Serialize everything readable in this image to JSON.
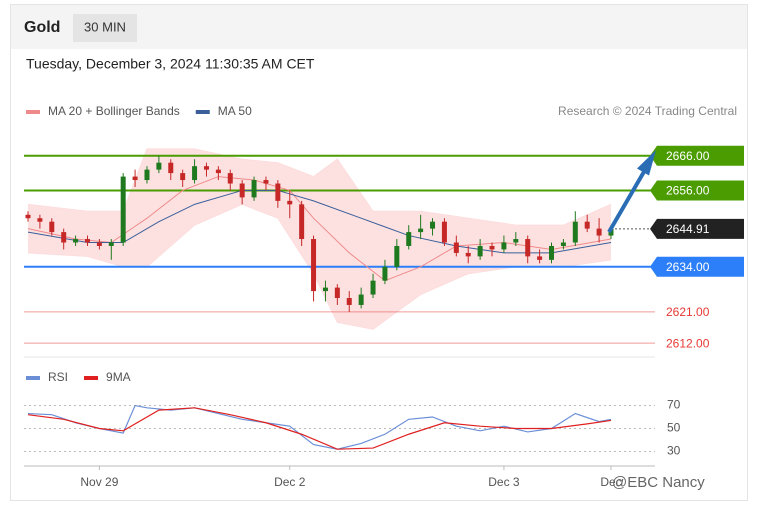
{
  "header": {
    "symbol": "Gold",
    "interval": "30 MIN",
    "timestamp": "Tuesday, December 3, 2024 11:30:35 AM CET",
    "source": "Research © 2024 Trading Central"
  },
  "watermark": "@EBC Nancy",
  "chart_data": [
    {
      "type": "candlestick",
      "up_color": "#1f7a1f",
      "down_color": "#c62828",
      "candles": [
        [
          2649,
          2650,
          2647,
          2648
        ],
        [
          2648,
          2649,
          2645,
          2647
        ],
        [
          2647,
          2648,
          2643,
          2644
        ],
        [
          2644,
          2645,
          2639,
          2641
        ],
        [
          2641,
          2643,
          2640,
          2642
        ],
        [
          2642,
          2643,
          2640,
          2641
        ],
        [
          2641,
          2642,
          2639,
          2640
        ],
        [
          2640,
          2642,
          2636,
          2641
        ],
        [
          2641,
          2661,
          2640,
          2660
        ],
        [
          2660,
          2662,
          2657,
          2659
        ],
        [
          2659,
          2663,
          2658,
          2662
        ],
        [
          2662,
          2666,
          2661,
          2664
        ],
        [
          2664,
          2665,
          2659,
          2661
        ],
        [
          2661,
          2662,
          2657,
          2659
        ],
        [
          2659,
          2665,
          2658,
          2663
        ],
        [
          2663,
          2664,
          2660,
          2662
        ],
        [
          2662,
          2663,
          2659,
          2661
        ],
        [
          2661,
          2662,
          2656,
          2658
        ],
        [
          2658,
          2659,
          2652,
          2654
        ],
        [
          2654,
          2660,
          2653,
          2659
        ],
        [
          2659,
          2660,
          2656,
          2658
        ],
        [
          2658,
          2659,
          2651,
          2653
        ],
        [
          2653,
          2656,
          2648,
          2652
        ],
        [
          2652,
          2653,
          2640,
          2642
        ],
        [
          2642,
          2643,
          2624,
          2627
        ],
        [
          2627,
          2630,
          2624,
          2628
        ],
        [
          2628,
          2629,
          2623,
          2625
        ],
        [
          2625,
          2627,
          2621,
          2623
        ],
        [
          2623,
          2628,
          2622,
          2626
        ],
        [
          2626,
          2632,
          2625,
          2630
        ],
        [
          2630,
          2636,
          2629,
          2634
        ],
        [
          2634,
          2642,
          2633,
          2640
        ],
        [
          2640,
          2646,
          2639,
          2644
        ],
        [
          2644,
          2649,
          2642,
          2645
        ],
        [
          2645,
          2648,
          2643,
          2647
        ],
        [
          2647,
          2648,
          2640,
          2641
        ],
        [
          2641,
          2643,
          2637,
          2638
        ],
        [
          2638,
          2640,
          2635,
          2637
        ],
        [
          2637,
          2642,
          2636,
          2640
        ],
        [
          2640,
          2641,
          2637,
          2639
        ],
        [
          2639,
          2643,
          2638,
          2641
        ],
        [
          2641,
          2644,
          2640,
          2642
        ],
        [
          2642,
          2643,
          2635,
          2637
        ],
        [
          2637,
          2639,
          2635,
          2636
        ],
        [
          2636,
          2641,
          2635,
          2640
        ],
        [
          2640,
          2642,
          2639,
          2641
        ],
        [
          2641,
          2650,
          2640,
          2647
        ],
        [
          2647,
          2649,
          2644,
          2645
        ],
        [
          2645,
          2648,
          2641,
          2643
        ],
        [
          2643,
          2646,
          2642,
          2644.91
        ]
      ],
      "bollinger": {
        "color": "#fddcdc",
        "x": [
          0,
          5,
          8,
          10,
          14,
          18,
          21,
          24,
          26,
          29,
          33,
          37,
          41,
          45,
          49
        ],
        "upper": [
          2652,
          2650,
          2650,
          2668,
          2668,
          2665,
          2664,
          2660,
          2665,
          2650,
          2650,
          2648,
          2646,
          2646,
          2652
        ],
        "lower": [
          2638,
          2637,
          2634,
          2634,
          2646,
          2652,
          2648,
          2632,
          2618,
          2616,
          2626,
          2632,
          2634,
          2634,
          2636
        ]
      },
      "series": [
        {
          "name": "MA 20 + Bollinger Bands",
          "color": "#f08a8a",
          "x": [
            0,
            4,
            7,
            10,
            13,
            16,
            19,
            22,
            24,
            27,
            30,
            33,
            36,
            40,
            44,
            49
          ],
          "values": [
            2645,
            2642,
            2641,
            2648,
            2656,
            2660,
            2659,
            2656,
            2648,
            2638,
            2630,
            2634,
            2640,
            2641,
            2639,
            2642
          ]
        },
        {
          "name": "MA 50",
          "color": "#3a5f9a",
          "x": [
            0,
            5,
            8,
            11,
            14,
            18,
            21,
            24,
            28,
            32,
            36,
            40,
            44,
            49
          ],
          "values": [
            2644,
            2641,
            2641,
            2647,
            2652,
            2656,
            2656,
            2653,
            2648,
            2643,
            2640,
            2638,
            2638,
            2641
          ]
        }
      ],
      "levels": [
        {
          "value": 2666,
          "label": "2666.00",
          "color": "#4a9c00",
          "box": true
        },
        {
          "value": 2656,
          "label": "2656.00",
          "color": "#4a9c00",
          "box": true
        },
        {
          "value": 2634,
          "label": "2634.00",
          "color": "#2d7ff9",
          "box": true
        },
        {
          "value": 2621,
          "label": "2621.00",
          "color": "#e53935",
          "box": false
        },
        {
          "value": 2612,
          "label": "2612.00",
          "color": "#e53935",
          "box": false
        }
      ],
      "last_price": {
        "value": 2644.91,
        "label": "2644.91",
        "color": "#222222"
      },
      "xlim": [
        0,
        49
      ],
      "ylim": [
        2608,
        2674
      ]
    },
    {
      "type": "line",
      "series": [
        {
          "name": "RSI",
          "color": "#6b8fd6",
          "x": [
            0,
            2,
            4,
            6,
            8,
            9,
            10,
            12,
            14,
            16,
            18,
            20,
            22,
            24,
            26,
            28,
            30,
            32,
            34,
            36,
            38,
            40,
            42,
            44,
            46,
            48,
            49
          ],
          "values": [
            63,
            62,
            55,
            50,
            46,
            70,
            68,
            66,
            68,
            63,
            58,
            55,
            52,
            36,
            32,
            37,
            45,
            58,
            60,
            52,
            48,
            52,
            47,
            50,
            63,
            56,
            58
          ]
        },
        {
          "name": "9MA",
          "color": "#e02020",
          "x": [
            0,
            3,
            6,
            8,
            11,
            14,
            17,
            20,
            23,
            26,
            29,
            32,
            35,
            38,
            41,
            44,
            47,
            49
          ],
          "values": [
            62,
            58,
            50,
            48,
            66,
            68,
            62,
            55,
            45,
            32,
            33,
            45,
            55,
            52,
            50,
            50,
            54,
            57
          ]
        }
      ],
      "xlim": [
        0,
        49
      ],
      "ylim": [
        20,
        80
      ],
      "yticks": [
        70,
        50,
        30
      ],
      "xticks": [
        {
          "value": 6,
          "label": "Nov 29"
        },
        {
          "value": 22,
          "label": "Dec 2"
        },
        {
          "value": 40,
          "label": "Dec 3"
        },
        {
          "value": 49,
          "label": "Dec"
        }
      ]
    }
  ]
}
